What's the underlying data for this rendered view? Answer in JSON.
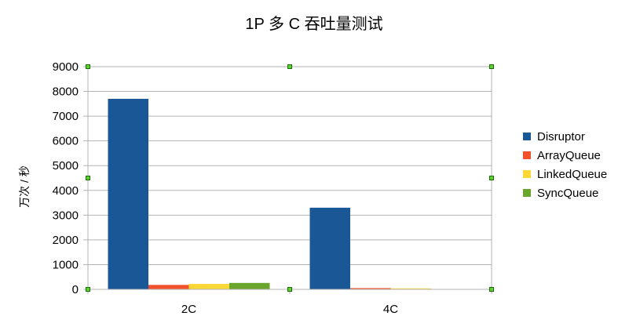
{
  "chart_data": {
    "type": "bar",
    "title": "1P 多 C 吞吐量测试",
    "xlabel": "",
    "ylabel": "万次 / 秒",
    "categories": [
      "2C",
      "4C"
    ],
    "ylim": [
      0,
      9000
    ],
    "yticks": [
      0,
      1000,
      2000,
      3000,
      4000,
      5000,
      6000,
      7000,
      8000,
      9000
    ],
    "grid": true,
    "legend_position": "right",
    "series": [
      {
        "name": "Disruptor",
        "color": "#1a5796",
        "values": [
          7700,
          3300
        ]
      },
      {
        "name": "ArrayQueue",
        "color": "#f1522b",
        "values": [
          180,
          50
        ]
      },
      {
        "name": "LinkedQueue",
        "color": "#fdd735",
        "values": [
          220,
          40
        ]
      },
      {
        "name": "SyncQueue",
        "color": "#6aa62d",
        "values": [
          260,
          10
        ]
      }
    ]
  }
}
